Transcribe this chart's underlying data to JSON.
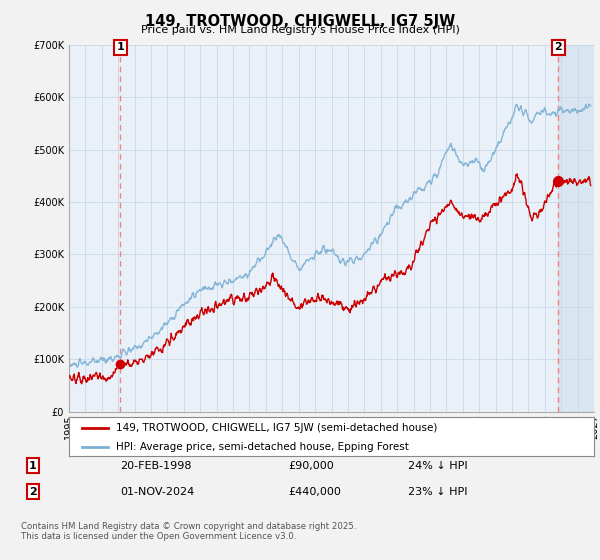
{
  "title": "149, TROTWOOD, CHIGWELL, IG7 5JW",
  "subtitle": "Price paid vs. HM Land Registry's House Price Index (HPI)",
  "ylim": [
    0,
    700000
  ],
  "yticks": [
    0,
    100000,
    200000,
    300000,
    400000,
    500000,
    600000,
    700000
  ],
  "xlim_start": 1995.0,
  "xlim_end": 2027.0,
  "legend_line1": "149, TROTWOOD, CHIGWELL, IG7 5JW (semi-detached house)",
  "legend_line2": "HPI: Average price, semi-detached house, Epping Forest",
  "transaction1_date": "20-FEB-1998",
  "transaction1_price": "£90,000",
  "transaction1_hpi": "24% ↓ HPI",
  "transaction2_date": "01-NOV-2024",
  "transaction2_price": "£440,000",
  "transaction2_hpi": "23% ↓ HPI",
  "footer": "Contains HM Land Registry data © Crown copyright and database right 2025.\nThis data is licensed under the Open Government Licence v3.0.",
  "hpi_color": "#7ab0d4",
  "price_color": "#cc0000",
  "marker1_x": 1998.13,
  "marker1_y": 90000,
  "marker2_x": 2024.83,
  "marker2_y": 440000,
  "background_color": "#f2f2f2",
  "plot_bg_color": "#eaf0f8"
}
